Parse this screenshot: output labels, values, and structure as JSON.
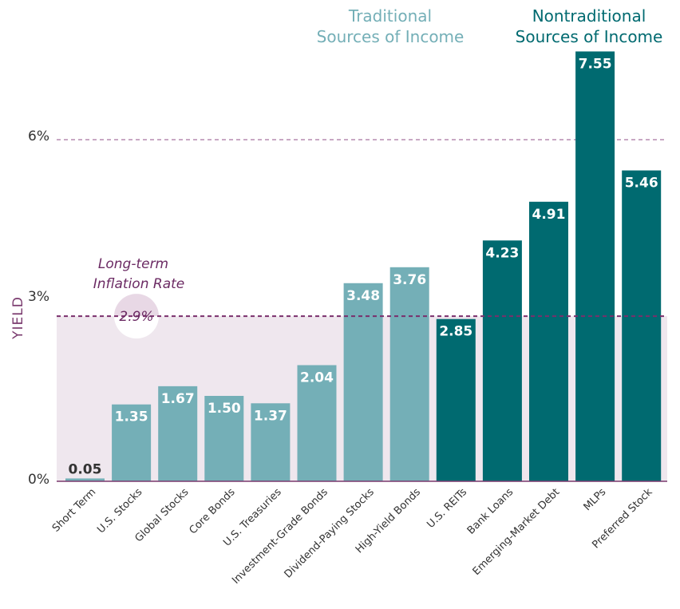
{
  "chart_data": {
    "type": "bar",
    "title": "",
    "xlabel": "",
    "ylabel": "YIELD",
    "ylim": [
      0,
      7.6
    ],
    "yticks": [
      {
        "value": 0,
        "label": "0%"
      },
      {
        "value": 3,
        "label": "3%"
      },
      {
        "value": 6,
        "label": "6%"
      }
    ],
    "categories": [
      "Short Term",
      "U.S. Stocks",
      "Global Stocks",
      "Core Bonds",
      "U.S. Treasuries",
      "Investment-Grade Bonds",
      "Dividend-Paying Stocks",
      "High-Yield Bonds",
      "U.S. REITs",
      "Bank Loans",
      "Emerging-Market Debt",
      "MLPs",
      "Preferred Stock"
    ],
    "values": [
      0.05,
      1.35,
      1.67,
      1.5,
      1.37,
      2.04,
      3.48,
      3.76,
      2.85,
      4.23,
      4.91,
      7.55,
      5.46
    ],
    "value_labels": [
      "0.05",
      "1.35",
      "1.67",
      "1.50",
      "1.37",
      "2.04",
      "3.48",
      "3.76",
      "2.85",
      "4.23",
      "4.91",
      "7.55",
      "5.46"
    ],
    "groups": [
      {
        "name": "Traditional Sources of Income",
        "title_lines": [
          "Traditional",
          "Sources of Income"
        ],
        "color": "#74afb7",
        "indices": [
          0,
          1,
          2,
          3,
          4,
          5,
          6,
          7
        ]
      },
      {
        "name": "Nontraditional Sources of Income",
        "title_lines": [
          "Nontraditional",
          "Sources of Income"
        ],
        "color": "#006a70",
        "indices": [
          8,
          9,
          10,
          11,
          12
        ]
      }
    ],
    "reference_lines": [
      {
        "value": 6,
        "style": "dashed",
        "color": "#b58bb0"
      },
      {
        "value": 2.9,
        "style": "dashed",
        "color": "#7a2f6c",
        "label": "2.9%",
        "annotation_lines": [
          "Long-term",
          "Inflation Rate"
        ],
        "shaded_below": true,
        "shade_color": "#efe7ee"
      }
    ],
    "grid": false,
    "legend": "none",
    "colors": {
      "axis": "#7a3a6e",
      "inflation_text": "#6b2a63",
      "inflation_circle": "#e8d8e5",
      "short_term_label": "#333333",
      "bar_label": "#ffffff"
    }
  }
}
